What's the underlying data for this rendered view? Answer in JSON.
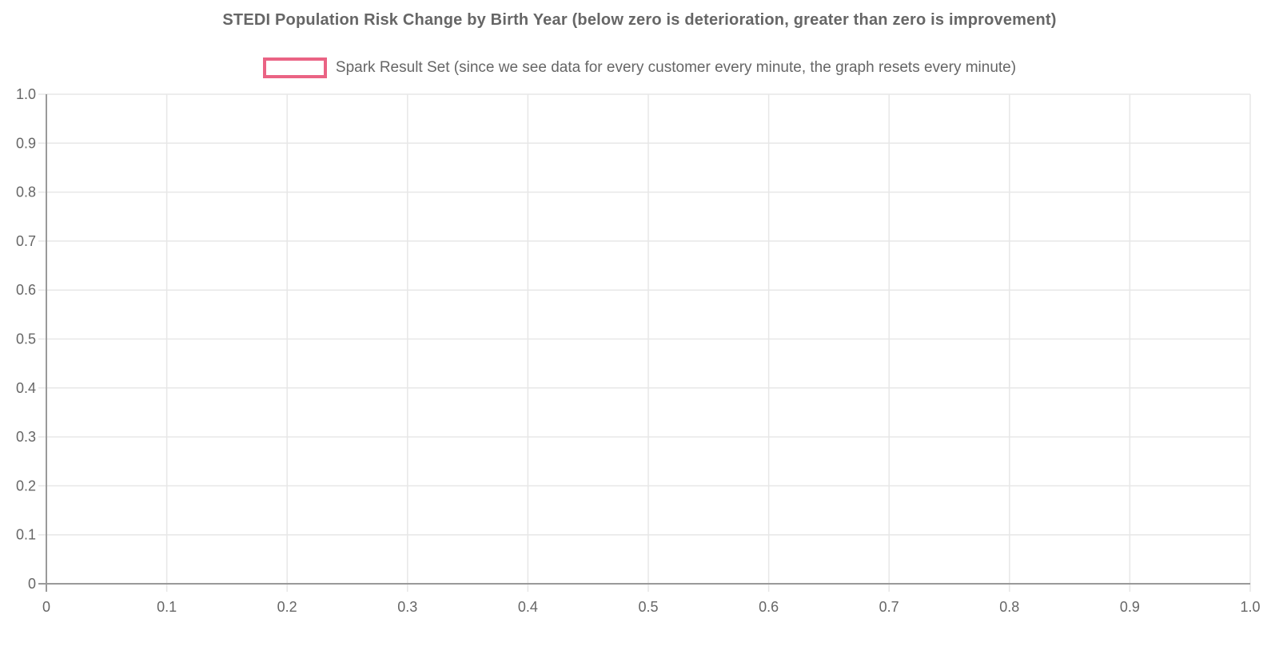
{
  "chart_data": {
    "type": "line",
    "title": "STEDI Population Risk Change by Birth Year (below zero is deterioration, greater than zero is improvement)",
    "series": [
      {
        "name": "Spark Result Set (since we see data for every customer every minute, the graph resets every minute)",
        "color": "#ea6384",
        "fill": "#ffffff",
        "x": [],
        "y": []
      }
    ],
    "xlabel": "",
    "ylabel": "",
    "xlim": [
      0,
      1
    ],
    "ylim": [
      0,
      1
    ],
    "xticks": [
      "0",
      "0.1",
      "0.2",
      "0.3",
      "0.4",
      "0.5",
      "0.6",
      "0.7",
      "0.8",
      "0.9",
      "1.0"
    ],
    "yticks": [
      "0",
      "0.1",
      "0.2",
      "0.3",
      "0.4",
      "0.5",
      "0.6",
      "0.7",
      "0.8",
      "0.9",
      "1.0"
    ],
    "grid": true,
    "legend_position": "top"
  },
  "colors": {
    "background": "#ffffff",
    "grid": "#e7e7e7",
    "axis": "#9a9a9a",
    "text": "#666666",
    "legend_border": "#ea6384",
    "legend_fill": "#ffffff"
  }
}
